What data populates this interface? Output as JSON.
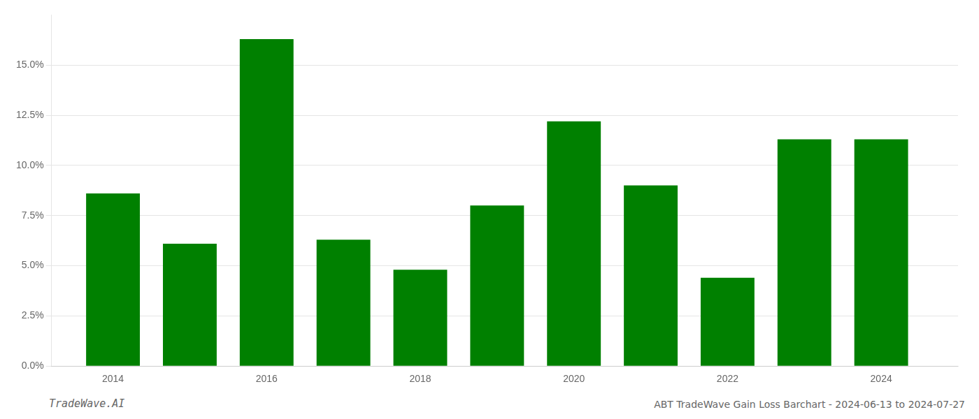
{
  "chart_data": {
    "type": "bar",
    "title": "ABT TradeWave Gain Loss Barchart - 2024-06-13 to 2024-07-27",
    "annotations": [
      "TradeWave.AI"
    ],
    "x": [
      2014,
      2015,
      2016,
      2017,
      2018,
      2019,
      2020,
      2021,
      2022,
      2023,
      2024
    ],
    "values": [
      0.086,
      0.061,
      0.163,
      0.063,
      0.048,
      0.08,
      0.122,
      0.09,
      0.044,
      0.113,
      0.113
    ],
    "color": "#008000",
    "xlim": [
      2013.2,
      2025.0
    ],
    "xticks": [
      2014,
      2016,
      2018,
      2020,
      2022,
      2024
    ],
    "ylim": [
      0,
      0.175
    ],
    "yticks": [
      {
        "value": 0.0,
        "label": "0.0%"
      },
      {
        "value": 0.025,
        "label": "2.5%"
      },
      {
        "value": 0.05,
        "label": "5.0%"
      },
      {
        "value": 0.075,
        "label": "7.5%"
      },
      {
        "value": 0.1,
        "label": "10.0%"
      },
      {
        "value": 0.125,
        "label": "12.5%"
      },
      {
        "value": 0.15,
        "label": "15.0%"
      }
    ],
    "grid": "y"
  }
}
